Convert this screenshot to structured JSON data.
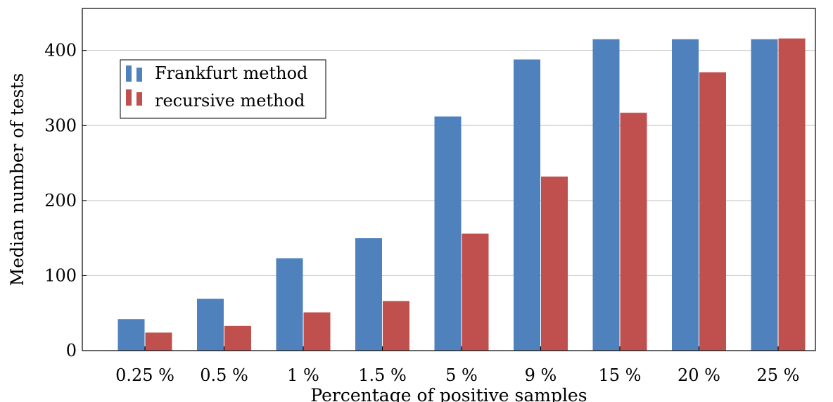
{
  "chart_data": {
    "type": "bar",
    "title": "",
    "xlabel": "Percentage of positive samples",
    "ylabel": "Median number of tests",
    "categories": [
      "0.25 %",
      "0.5 %",
      "1 %",
      "1.5 %",
      "5 %",
      "9 %",
      "15 %",
      "20 %",
      "25 %"
    ],
    "series": [
      {
        "name": "Frankfurt method",
        "color": "#4f81bd",
        "values": [
          42,
          69,
          123,
          150,
          312,
          388,
          415,
          415,
          415
        ]
      },
      {
        "name": "recursive method",
        "color": "#c0504d",
        "values": [
          24,
          33,
          51,
          66,
          156,
          232,
          317,
          371,
          416
        ]
      }
    ],
    "ylim": [
      0,
      456
    ],
    "yticks": [
      0,
      100,
      200,
      300,
      400
    ],
    "grid": true,
    "legend_position": "top-left"
  }
}
